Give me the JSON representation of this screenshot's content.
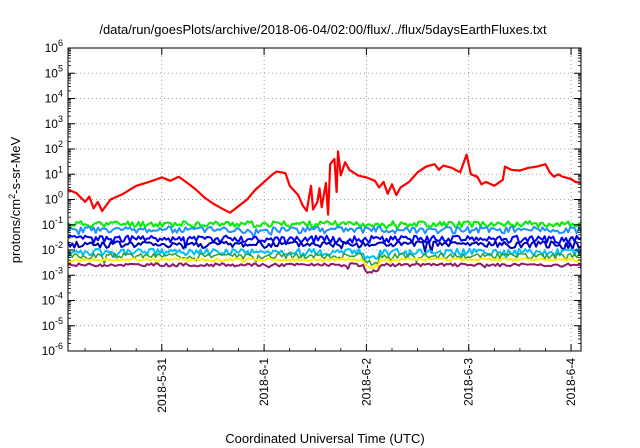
{
  "chart_data": {
    "type": "line",
    "title": "/data/run/goesPlots/archive/2018-06-04/02:00/flux/../flux/5daysEarthFluxes.txt",
    "xlabel": "Coordinated Universal Time (UTC)",
    "ylabel_parts": [
      "protons/cm",
      "2",
      "-s-sr-MeV"
    ],
    "yscale": "log",
    "ylim_exp": [
      -6,
      6
    ],
    "ytick_exponents": [
      -6,
      -5,
      -4,
      -3,
      -2,
      -1,
      0,
      1,
      2,
      3,
      4,
      5,
      6
    ],
    "ytick_base": "10",
    "xlim": [
      "2018-05-30T02:00",
      "2018-06-04T02:20"
    ],
    "xticks": [
      {
        "t": "2018-05-31T00:00",
        "label": "2018-5-31"
      },
      {
        "t": "2018-06-01T00:00",
        "label": "2018-6-1"
      },
      {
        "t": "2018-06-02T00:00",
        "label": "2018-6-2"
      },
      {
        "t": "2018-06-03T00:00",
        "label": "2018-6-3"
      },
      {
        "t": "2018-06-04T00:00",
        "label": "2018-6-4"
      }
    ],
    "grid": true,
    "series": [
      {
        "color": "#ff0000",
        "width": 2.2,
        "values": [
          [
            "2018-05-30T02:00",
            2.5
          ],
          [
            "2018-05-30T04:00",
            1.8
          ],
          [
            "2018-05-30T06:00",
            0.8
          ],
          [
            "2018-05-30T07:00",
            1.3
          ],
          [
            "2018-05-30T08:00",
            0.45
          ],
          [
            "2018-05-30T09:00",
            0.8
          ],
          [
            "2018-05-30T10:00",
            0.35
          ],
          [
            "2018-05-30T12:00",
            1.0
          ],
          [
            "2018-05-30T15:00",
            1.7
          ],
          [
            "2018-05-30T18:00",
            3.5
          ],
          [
            "2018-05-30T21:00",
            5.0
          ],
          [
            "2018-05-31T00:00",
            7.5
          ],
          [
            "2018-05-31T02:00",
            5.5
          ],
          [
            "2018-05-31T04:00",
            8.0
          ],
          [
            "2018-05-31T06:00",
            4.5
          ],
          [
            "2018-05-31T08:00",
            2.5
          ],
          [
            "2018-05-31T10:00",
            1.2
          ],
          [
            "2018-05-31T12:00",
            0.7
          ],
          [
            "2018-05-31T14:00",
            0.45
          ],
          [
            "2018-05-31T16:00",
            0.3
          ],
          [
            "2018-05-31T18:00",
            0.55
          ],
          [
            "2018-05-31T20:00",
            1.0
          ],
          [
            "2018-05-31T22:00",
            2.5
          ],
          [
            "2018-06-01T00:00",
            5.0
          ],
          [
            "2018-06-01T02:00",
            10.0
          ],
          [
            "2018-06-01T03:00",
            13.0
          ],
          [
            "2018-06-01T05:00",
            11.0
          ],
          [
            "2018-06-01T06:00",
            3.5
          ],
          [
            "2018-06-01T08:00",
            1.5
          ],
          [
            "2018-06-01T09:00",
            0.6
          ],
          [
            "2018-06-01T10:00",
            0.35
          ],
          [
            "2018-06-01T11:00",
            3.5
          ],
          [
            "2018-06-01T11:30",
            0.4
          ],
          [
            "2018-06-01T12:30",
            0.8
          ],
          [
            "2018-06-01T13:00",
            2.8
          ],
          [
            "2018-06-01T13:30",
            0.5
          ],
          [
            "2018-06-01T14:30",
            4.5
          ],
          [
            "2018-06-01T15:00",
            0.25
          ],
          [
            "2018-06-01T15:30",
            25
          ],
          [
            "2018-06-01T16:30",
            40
          ],
          [
            "2018-06-01T17:00",
            2.0
          ],
          [
            "2018-06-01T17:20",
            80
          ],
          [
            "2018-06-01T18:00",
            9.0
          ],
          [
            "2018-06-01T19:00",
            30
          ],
          [
            "2018-06-01T20:00",
            15
          ],
          [
            "2018-06-01T22:00",
            9.0
          ],
          [
            "2018-06-02T00:00",
            7.5
          ],
          [
            "2018-06-02T02:00",
            5.5
          ],
          [
            "2018-06-02T03:00",
            3.0
          ],
          [
            "2018-06-02T04:00",
            5.0
          ],
          [
            "2018-06-02T05:00",
            1.7
          ],
          [
            "2018-06-02T06:00",
            4.0
          ],
          [
            "2018-06-02T07:00",
            1.5
          ],
          [
            "2018-06-02T08:00",
            3.0
          ],
          [
            "2018-06-02T10:00",
            5.0
          ],
          [
            "2018-06-02T12:00",
            12
          ],
          [
            "2018-06-02T14:00",
            20
          ],
          [
            "2018-06-02T16:00",
            25
          ],
          [
            "2018-06-02T17:00",
            15
          ],
          [
            "2018-06-02T18:00",
            22
          ],
          [
            "2018-06-02T20:00",
            18
          ],
          [
            "2018-06-02T22:00",
            12
          ],
          [
            "2018-06-02T23:30",
            60
          ],
          [
            "2018-06-03T00:30",
            10
          ],
          [
            "2018-06-03T02:00",
            8.0
          ],
          [
            "2018-06-03T03:00",
            4.0
          ],
          [
            "2018-06-03T04:00",
            5.0
          ],
          [
            "2018-06-03T06:00",
            3.5
          ],
          [
            "2018-06-03T08:00",
            6.0
          ],
          [
            "2018-06-03T08:30",
            20
          ],
          [
            "2018-06-03T10:00",
            15
          ],
          [
            "2018-06-03T12:00",
            14
          ],
          [
            "2018-06-03T14:00",
            18
          ],
          [
            "2018-06-03T16:00",
            20
          ],
          [
            "2018-06-03T18:00",
            25
          ],
          [
            "2018-06-03T19:00",
            12
          ],
          [
            "2018-06-03T20:00",
            8.0
          ],
          [
            "2018-06-03T21:00",
            10
          ],
          [
            "2018-06-03T22:00",
            8.0
          ],
          [
            "2018-06-04T00:00",
            6.5
          ],
          [
            "2018-06-04T01:00",
            5.0
          ],
          [
            "2018-06-04T02:20",
            4.5
          ]
        ]
      },
      {
        "color": "#00ee00",
        "width": 2,
        "base": 0.11,
        "amp": 0.28,
        "seed": 11
      },
      {
        "color": "#1e90ff",
        "width": 2,
        "base": 0.065,
        "amp": 0.3,
        "seed": 23
      },
      {
        "color": "#0000ff",
        "width": 2,
        "base": 0.028,
        "amp": 0.32,
        "seed": 37
      },
      {
        "color": "#0000b0",
        "width": 2,
        "base": 0.017,
        "amp": 0.3,
        "seed": 41
      },
      {
        "color": "#00bfff",
        "width": 2,
        "base": 0.0085,
        "amp": 0.3,
        "seed": 53
      },
      {
        "color": "#2ca02c",
        "width": 1.5,
        "base": 0.006,
        "amp": 0.25,
        "seed": 67
      },
      {
        "color": "#ffee00",
        "width": 2,
        "base": 0.0042,
        "amp": 0.12,
        "seed": 71
      },
      {
        "color": "#8b1a6b",
        "width": 2,
        "base": 0.0026,
        "amp": 0.14,
        "seed": 83
      }
    ]
  }
}
